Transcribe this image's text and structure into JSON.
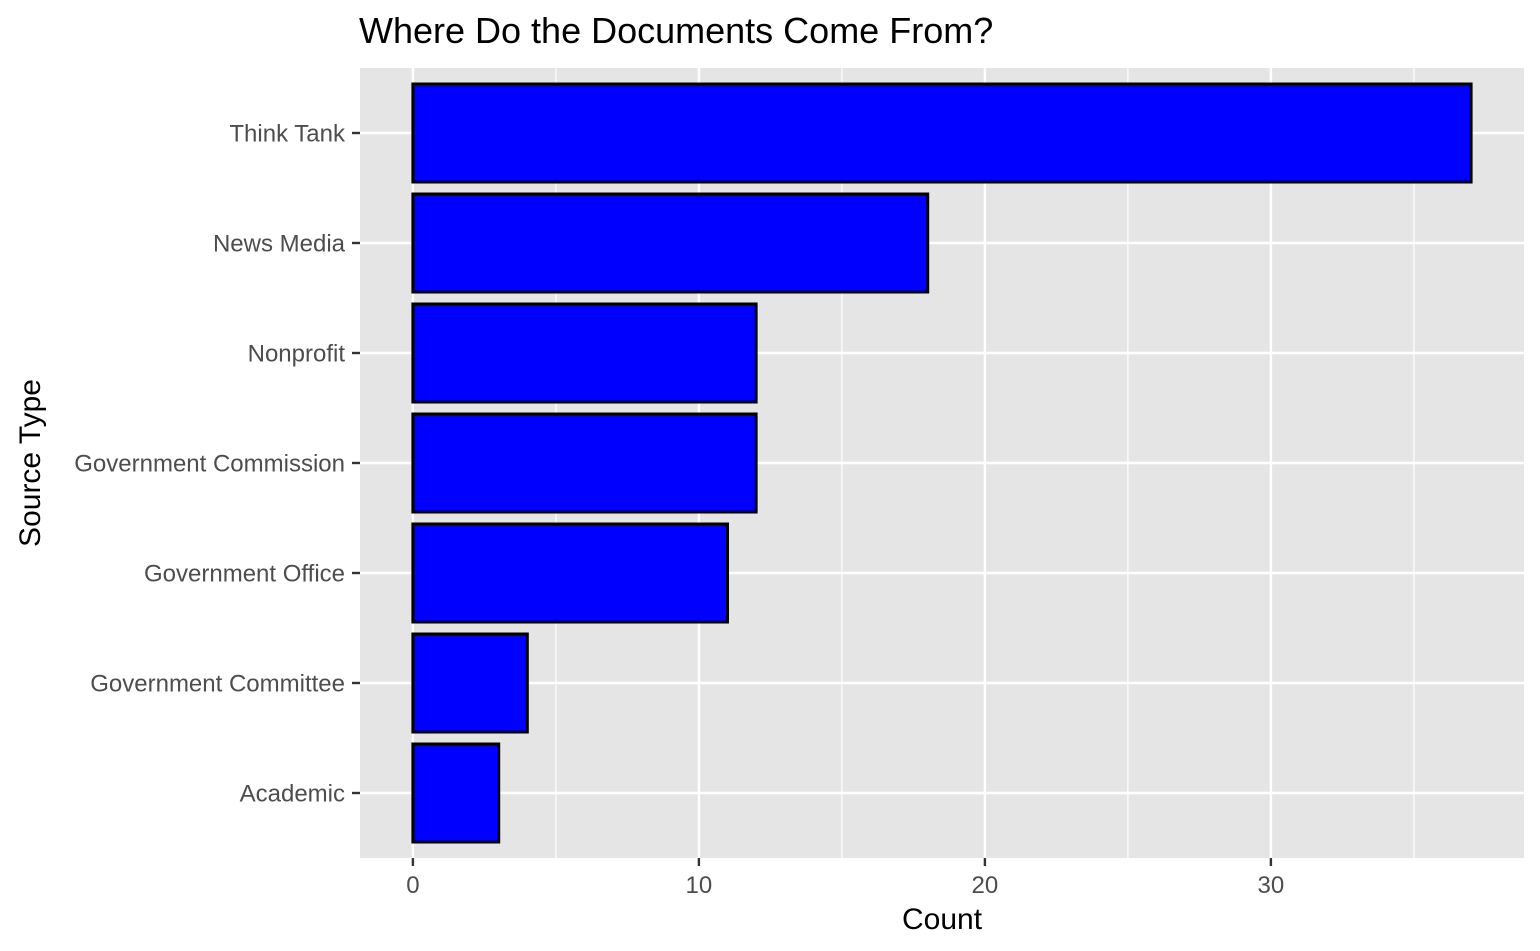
{
  "chart_data": {
    "type": "bar",
    "orientation": "horizontal",
    "title": "Where Do the Documents Come From?",
    "xlabel": "Count",
    "ylabel": "Source Type",
    "categories": [
      "Think Tank",
      "News Media",
      "Nonprofit",
      "Government Commission",
      "Government Office",
      "Government Committee",
      "Academic"
    ],
    "values": [
      37,
      18,
      12,
      12,
      11,
      4,
      3
    ],
    "xlim": [
      -1.85,
      38.85
    ],
    "x_ticks": [
      0,
      10,
      20,
      30
    ],
    "x_minor_ticks": [
      5,
      15,
      25,
      35
    ],
    "grid": true,
    "legend": "none",
    "colors": {
      "bar_fill": "#0000ff",
      "bar_outline": "#000000",
      "panel_background": "#e5e5e5",
      "grid": "#ffffff"
    }
  }
}
